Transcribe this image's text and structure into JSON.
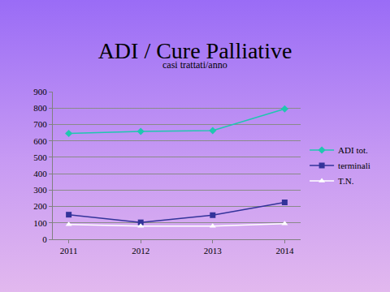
{
  "chart_data": {
    "type": "line",
    "title": "ADI / Cure Palliative",
    "subtitle": "casi trattati/anno",
    "categories": [
      "2011",
      "2012",
      "2013",
      "2014"
    ],
    "series": [
      {
        "name": "ADI tot.",
        "color": "#1fc7b0",
        "marker": "diamond",
        "values": [
          645,
          658,
          663,
          795
        ]
      },
      {
        "name": "terminali",
        "color": "#33339a",
        "marker": "square",
        "values": [
          150,
          103,
          147,
          225
        ]
      },
      {
        "name": "T.N.",
        "color": "#ffffff",
        "marker": "triangle-up",
        "values": [
          90,
          80,
          80,
          95
        ]
      }
    ],
    "ylim": [
      0,
      900
    ],
    "yticks": [
      0,
      100,
      200,
      300,
      400,
      500,
      600,
      700,
      800,
      900
    ],
    "grid": true,
    "legend": "right"
  }
}
